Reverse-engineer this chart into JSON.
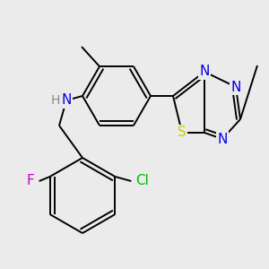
{
  "background_color": "#ebebeb",
  "bond_color": "#000000",
  "atom_colors": {
    "N": "#0000ee",
    "S": "#cccc00",
    "F": "#cc00cc",
    "Cl": "#00bb00",
    "H": "#888888",
    "C": "#000000"
  },
  "lw": 1.4
}
